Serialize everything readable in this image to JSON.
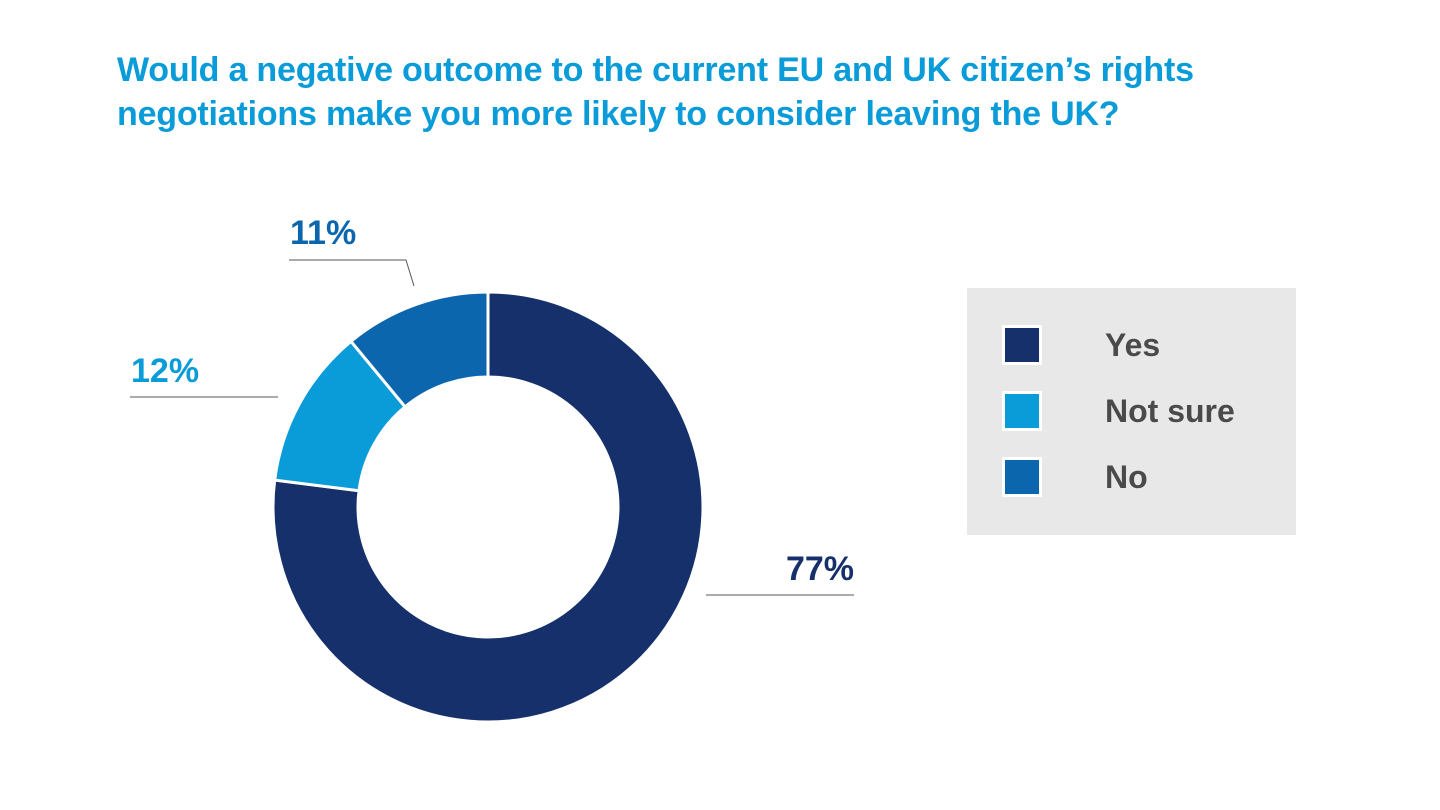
{
  "chart_data": {
    "type": "pie",
    "variant": "donut",
    "title": "Would a negative outcome to the current EU and UK citizen’s rights negotiations make you more likely to consider leaving the UK?",
    "title_lines": [
      "Would a negative outcome to the current EU and UK citizen’s rights",
      "negotiations make you more likely to consider leaving the UK?"
    ],
    "slices": [
      {
        "label": "Yes",
        "value": 77,
        "display": "77%",
        "color": "#15306b"
      },
      {
        "label": "Not sure",
        "value": 12,
        "display": "12%",
        "color": "#0a9bd9"
      },
      {
        "label": "No",
        "value": 11,
        "display": "11%",
        "color": "#0b66ae"
      }
    ],
    "legend_position": "right",
    "legend": [
      "Yes",
      "Not sure",
      "No"
    ],
    "start_angle": "top (12 o'clock), clockwise"
  },
  "colors": {
    "title": "#0a9bd9",
    "legend_background": "#e8e8e8",
    "legend_text": "#4a4a4a",
    "leader_line": "#555555"
  }
}
